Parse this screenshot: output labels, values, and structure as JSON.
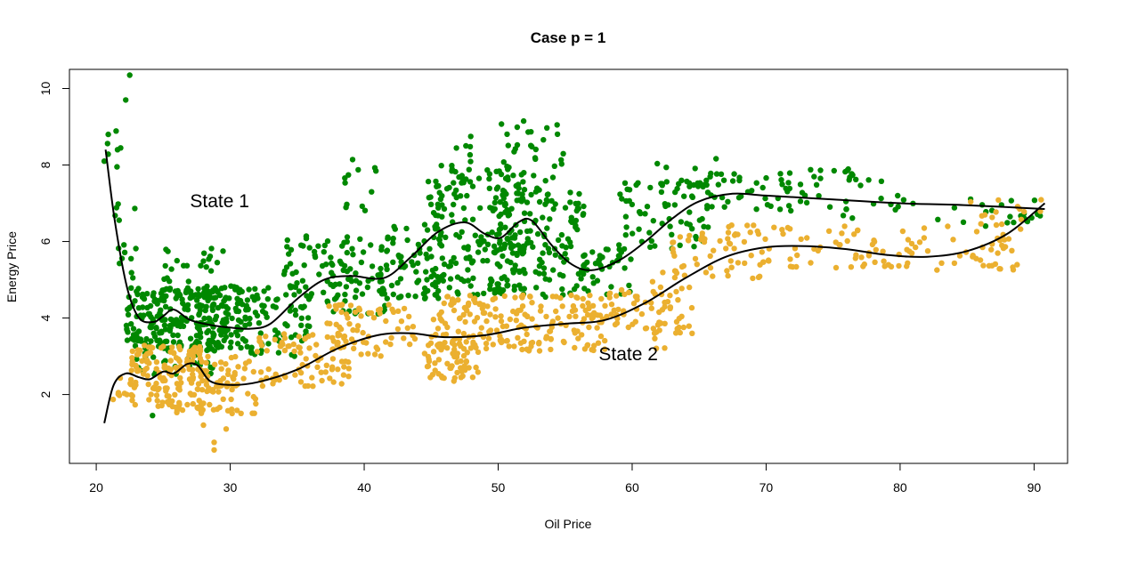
{
  "chart_data": {
    "type": "scatter",
    "title": "Case p = 1",
    "xlabel": "Oil Price",
    "ylabel": "Energy Price",
    "xlim": [
      18.0,
      92.5
    ],
    "ylim": [
      0.2,
      10.5
    ],
    "xticks": [
      20,
      30,
      40,
      50,
      60,
      70,
      80,
      90
    ],
    "yticks": [
      2,
      4,
      6,
      8,
      10
    ],
    "grid": false,
    "legend": "none",
    "annotations": [
      {
        "text": "State 1",
        "x": 27.0,
        "y": 6.9
      },
      {
        "text": "State 2",
        "x": 57.5,
        "y": 2.9
      }
    ],
    "series": [
      {
        "key": "state1",
        "color": "#008800",
        "clusters": [
          {
            "xmin": 20.6,
            "xmax": 22.0,
            "ymin": 6.0,
            "ymax": 8.9,
            "n": 10
          },
          {
            "xmin": 21.5,
            "xmax": 23.0,
            "ymin": 4.6,
            "ymax": 7.2,
            "n": 10
          },
          {
            "xmin": 22.2,
            "xmax": 31.5,
            "ymin": 3.2,
            "ymax": 4.8,
            "n": 300
          },
          {
            "xmin": 23.0,
            "xmax": 29.0,
            "ymin": 2.5,
            "ymax": 3.4,
            "n": 40
          },
          {
            "xmin": 25.0,
            "xmax": 31.0,
            "ymin": 4.6,
            "ymax": 5.9,
            "n": 30
          },
          {
            "xmin": 31.5,
            "xmax": 36.0,
            "ymin": 3.0,
            "ymax": 5.0,
            "n": 60
          },
          {
            "xmin": 34.0,
            "xmax": 42.0,
            "ymin": 4.0,
            "ymax": 6.2,
            "n": 120
          },
          {
            "xmin": 38.5,
            "xmax": 41.0,
            "ymin": 6.8,
            "ymax": 8.2,
            "n": 12
          },
          {
            "xmin": 42.0,
            "xmax": 46.0,
            "ymin": 4.5,
            "ymax": 6.5,
            "n": 60
          },
          {
            "xmin": 44.5,
            "xmax": 52.0,
            "ymin": 4.6,
            "ymax": 8.0,
            "n": 200
          },
          {
            "xmin": 46.5,
            "xmax": 48.0,
            "ymin": 8.0,
            "ymax": 8.9,
            "n": 6
          },
          {
            "xmin": 50.0,
            "xmax": 55.0,
            "ymin": 7.0,
            "ymax": 9.1,
            "n": 40
          },
          {
            "xmin": 50.0,
            "xmax": 56.5,
            "ymin": 4.5,
            "ymax": 7.4,
            "n": 130
          },
          {
            "xmin": 56.0,
            "xmax": 60.0,
            "ymin": 4.6,
            "ymax": 5.8,
            "n": 40
          },
          {
            "xmin": 59.0,
            "xmax": 66.0,
            "ymin": 5.8,
            "ymax": 7.6,
            "n": 70
          },
          {
            "xmin": 61.0,
            "xmax": 66.5,
            "ymin": 7.4,
            "ymax": 8.2,
            "n": 12
          },
          {
            "xmin": 65.0,
            "xmax": 72.0,
            "ymin": 6.8,
            "ymax": 7.8,
            "n": 40
          },
          {
            "xmin": 72.0,
            "xmax": 80.0,
            "ymin": 6.5,
            "ymax": 7.9,
            "n": 35
          },
          {
            "xmin": 80.0,
            "xmax": 90.5,
            "ymin": 6.4,
            "ymax": 7.2,
            "n": 25
          }
        ],
        "points": [
          {
            "x": 22.5,
            "y": 10.35
          },
          {
            "x": 22.2,
            "y": 9.7
          },
          {
            "x": 20.9,
            "y": 8.8
          },
          {
            "x": 20.6,
            "y": 8.1
          },
          {
            "x": 51.9,
            "y": 9.15
          },
          {
            "x": 54.4,
            "y": 9.05
          },
          {
            "x": 24.2,
            "y": 1.45
          }
        ]
      },
      {
        "key": "state2",
        "color": "#EBB030",
        "clusters": [
          {
            "xmin": 21.0,
            "xmax": 23.0,
            "ymin": 1.8,
            "ymax": 2.6,
            "n": 10
          },
          {
            "xmin": 22.5,
            "xmax": 28.0,
            "ymin": 1.5,
            "ymax": 3.3,
            "n": 150
          },
          {
            "xmin": 27.5,
            "xmax": 32.0,
            "ymin": 1.5,
            "ymax": 3.0,
            "n": 70
          },
          {
            "xmin": 32.0,
            "xmax": 39.0,
            "ymin": 2.2,
            "ymax": 3.6,
            "n": 80
          },
          {
            "xmin": 37.0,
            "xmax": 44.0,
            "ymin": 3.0,
            "ymax": 4.4,
            "n": 70
          },
          {
            "xmin": 44.5,
            "xmax": 48.5,
            "ymin": 2.4,
            "ymax": 3.4,
            "n": 60
          },
          {
            "xmin": 45.0,
            "xmax": 58.0,
            "ymin": 3.1,
            "ymax": 4.6,
            "n": 200
          },
          {
            "xmin": 58.0,
            "xmax": 64.0,
            "ymin": 3.6,
            "ymax": 4.8,
            "n": 50
          },
          {
            "xmin": 61.5,
            "xmax": 64.5,
            "ymin": 3.2,
            "ymax": 5.2,
            "n": 25
          },
          {
            "xmin": 63.0,
            "xmax": 70.0,
            "ymin": 5.0,
            "ymax": 6.5,
            "n": 60
          },
          {
            "xmin": 70.0,
            "xmax": 78.0,
            "ymin": 5.3,
            "ymax": 6.4,
            "n": 40
          },
          {
            "xmin": 78.0,
            "xmax": 89.0,
            "ymin": 5.2,
            "ymax": 6.4,
            "n": 60
          },
          {
            "xmin": 85.0,
            "xmax": 90.8,
            "ymin": 6.4,
            "ymax": 7.1,
            "n": 15
          }
        ],
        "points": [
          {
            "x": 28.8,
            "y": 0.55
          },
          {
            "x": 28.8,
            "y": 0.75
          },
          {
            "x": 28.0,
            "y": 1.2
          },
          {
            "x": 29.7,
            "y": 1.1
          },
          {
            "x": 46.7,
            "y": 2.35
          },
          {
            "x": 48.1,
            "y": 2.45
          }
        ]
      }
    ],
    "lines": [
      {
        "key": "state1-fit",
        "color": "#000000",
        "points": [
          {
            "x": 20.7,
            "y": 8.4
          },
          {
            "x": 21.4,
            "y": 6.5
          },
          {
            "x": 22.3,
            "y": 4.8
          },
          {
            "x": 23.2,
            "y": 4.0
          },
          {
            "x": 24.3,
            "y": 3.9
          },
          {
            "x": 25.0,
            "y": 4.05
          },
          {
            "x": 25.8,
            "y": 4.22
          },
          {
            "x": 27.0,
            "y": 3.95
          },
          {
            "x": 28.5,
            "y": 3.82
          },
          {
            "x": 30.0,
            "y": 3.75
          },
          {
            "x": 31.5,
            "y": 3.72
          },
          {
            "x": 33.0,
            "y": 3.85
          },
          {
            "x": 35.0,
            "y": 4.5
          },
          {
            "x": 37.0,
            "y": 5.0
          },
          {
            "x": 39.0,
            "y": 5.1
          },
          {
            "x": 41.5,
            "y": 5.05
          },
          {
            "x": 43.5,
            "y": 5.6
          },
          {
            "x": 45.5,
            "y": 6.25
          },
          {
            "x": 47.5,
            "y": 6.5
          },
          {
            "x": 49.0,
            "y": 6.2
          },
          {
            "x": 50.2,
            "y": 6.1
          },
          {
            "x": 51.5,
            "y": 6.5
          },
          {
            "x": 52.5,
            "y": 6.55
          },
          {
            "x": 54.0,
            "y": 5.9
          },
          {
            "x": 55.5,
            "y": 5.4
          },
          {
            "x": 57.0,
            "y": 5.25
          },
          {
            "x": 59.0,
            "y": 5.5
          },
          {
            "x": 61.0,
            "y": 6.0
          },
          {
            "x": 63.0,
            "y": 6.6
          },
          {
            "x": 65.0,
            "y": 7.05
          },
          {
            "x": 67.5,
            "y": 7.25
          },
          {
            "x": 70.0,
            "y": 7.2
          },
          {
            "x": 75.0,
            "y": 7.1
          },
          {
            "x": 80.0,
            "y": 7.0
          },
          {
            "x": 85.0,
            "y": 6.95
          },
          {
            "x": 90.8,
            "y": 6.85
          }
        ]
      },
      {
        "key": "state2-fit",
        "color": "#000000",
        "points": [
          {
            "x": 20.6,
            "y": 1.25
          },
          {
            "x": 21.3,
            "y": 2.25
          },
          {
            "x": 22.2,
            "y": 2.55
          },
          {
            "x": 23.2,
            "y": 2.45
          },
          {
            "x": 24.0,
            "y": 2.4
          },
          {
            "x": 25.0,
            "y": 2.6
          },
          {
            "x": 25.8,
            "y": 2.55
          },
          {
            "x": 26.8,
            "y": 2.8
          },
          {
            "x": 27.6,
            "y": 2.75
          },
          {
            "x": 28.5,
            "y": 2.35
          },
          {
            "x": 30.0,
            "y": 2.25
          },
          {
            "x": 32.0,
            "y": 2.32
          },
          {
            "x": 35.0,
            "y": 2.65
          },
          {
            "x": 38.0,
            "y": 3.2
          },
          {
            "x": 41.0,
            "y": 3.55
          },
          {
            "x": 43.5,
            "y": 3.6
          },
          {
            "x": 46.0,
            "y": 3.5
          },
          {
            "x": 49.0,
            "y": 3.55
          },
          {
            "x": 52.0,
            "y": 3.75
          },
          {
            "x": 55.0,
            "y": 3.85
          },
          {
            "x": 58.0,
            "y": 3.95
          },
          {
            "x": 61.0,
            "y": 4.4
          },
          {
            "x": 64.0,
            "y": 5.05
          },
          {
            "x": 67.0,
            "y": 5.6
          },
          {
            "x": 70.0,
            "y": 5.85
          },
          {
            "x": 73.0,
            "y": 5.88
          },
          {
            "x": 76.0,
            "y": 5.8
          },
          {
            "x": 79.0,
            "y": 5.65
          },
          {
            "x": 82.0,
            "y": 5.6
          },
          {
            "x": 85.0,
            "y": 5.75
          },
          {
            "x": 88.0,
            "y": 6.2
          },
          {
            "x": 90.8,
            "y": 7.0
          }
        ]
      }
    ]
  }
}
